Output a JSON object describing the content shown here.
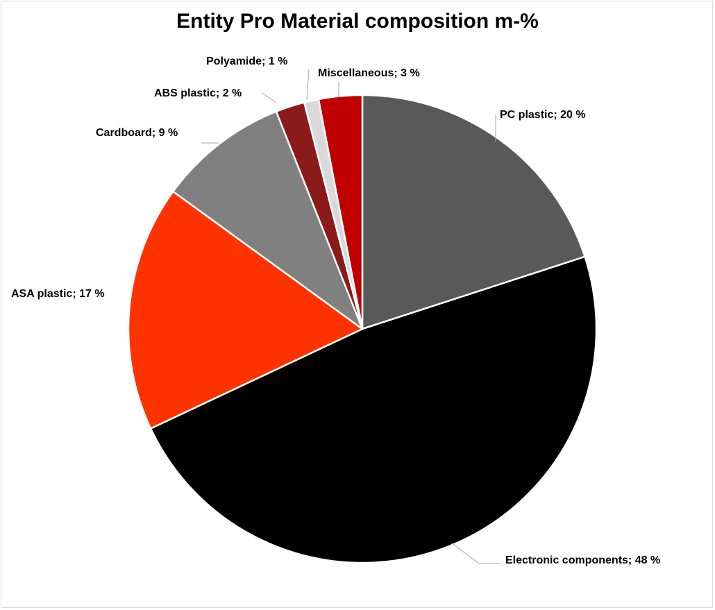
{
  "chart_data": {
    "type": "pie",
    "title": "Entity Pro Material composition m-%",
    "slices": [
      {
        "label": "PC plastic",
        "value": 20,
        "display": "PC plastic; 20 %",
        "color": "#595959"
      },
      {
        "label": "Electronic components",
        "value": 48,
        "display": "Electronic components; 48 %",
        "color": "#000000"
      },
      {
        "label": "ASA plastic",
        "value": 17,
        "display": "ASA plastic; 17 %",
        "color": "#ff3300"
      },
      {
        "label": "Cardboard",
        "value": 9,
        "display": "Cardboard; 9 %",
        "color": "#808080"
      },
      {
        "label": "ABS plastic",
        "value": 2,
        "display": "ABS plastic; 2 %",
        "color": "#8b1a1a"
      },
      {
        "label": "Polyamide",
        "value": 1,
        "display": "Polyamide; 1 %",
        "color": "#d9d9d9"
      },
      {
        "label": "Miscellaneous",
        "value": 3,
        "display": "Miscellaneous; 3 %",
        "color": "#c00000"
      }
    ],
    "start_angle": "12 o'clock",
    "direction": "clockwise",
    "legend": "none"
  }
}
